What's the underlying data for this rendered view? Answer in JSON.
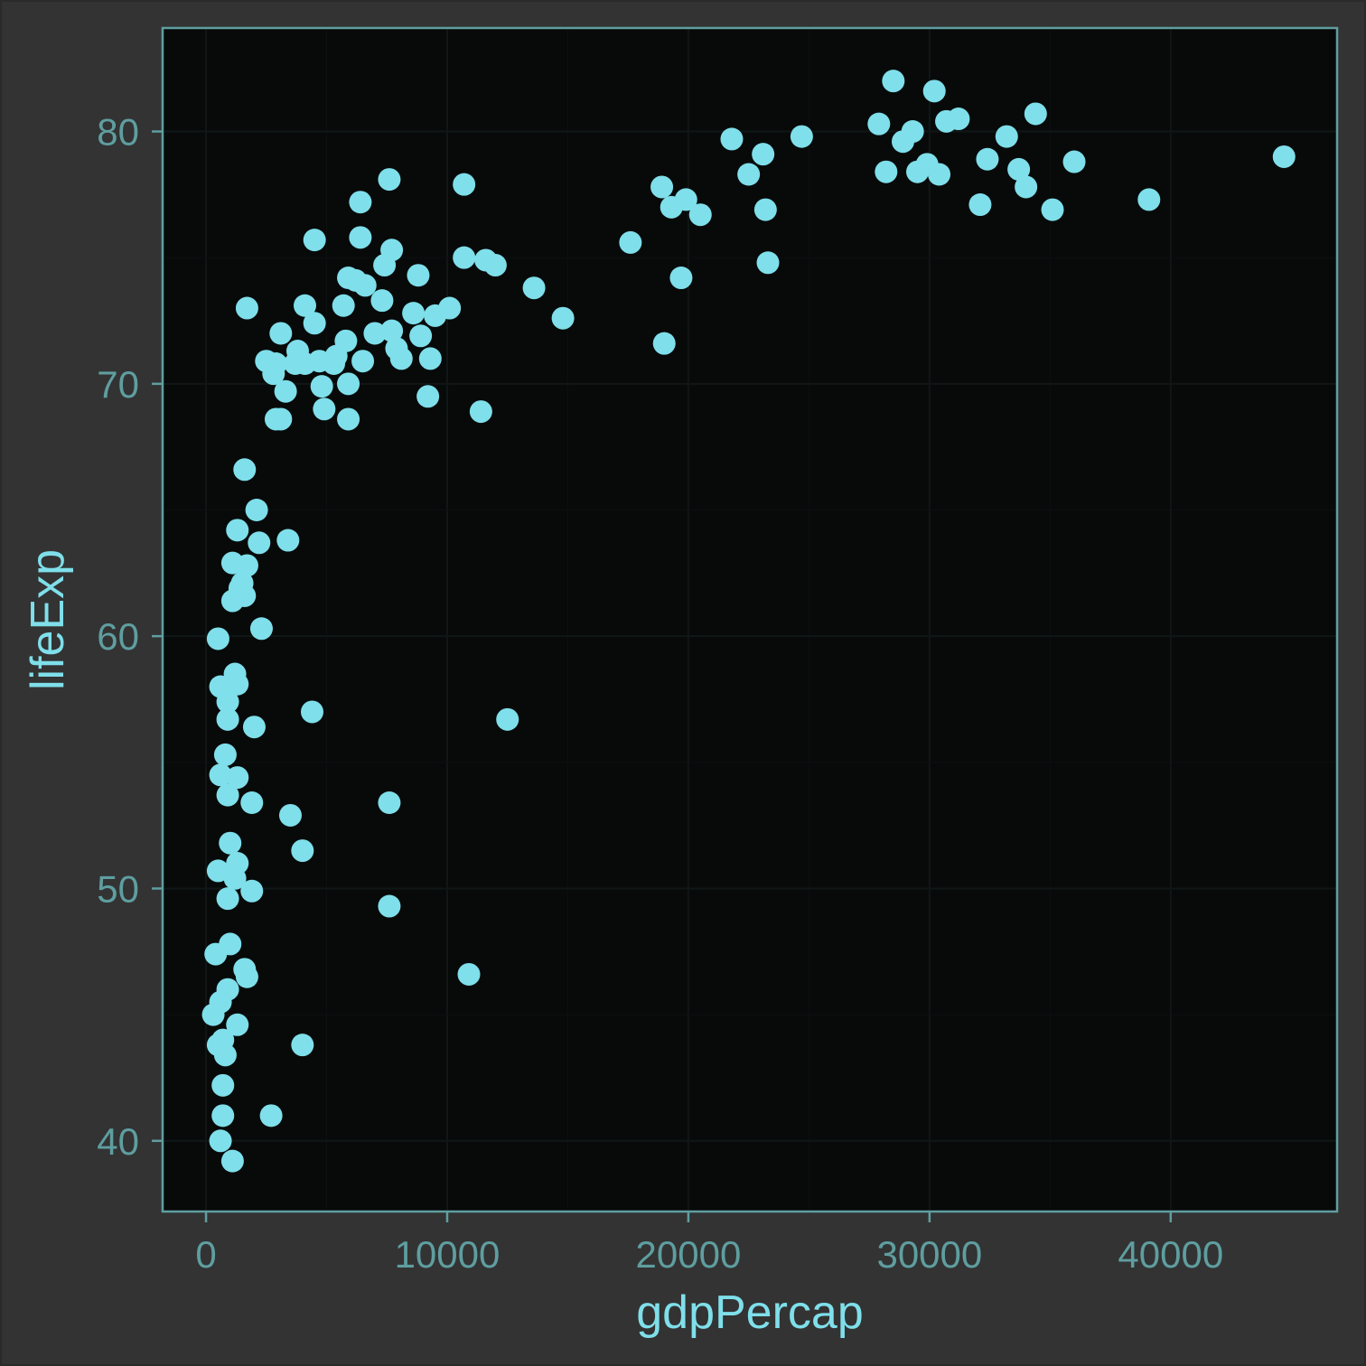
{
  "colors": {
    "background": "#333333",
    "panel": "#080a0a",
    "panel_border": "#5f9ea0",
    "point": "#7fdfea",
    "tick_text": "#5f9ea0",
    "axis_title": "#7fdfea"
  },
  "chart_data": {
    "type": "scatter",
    "title": "",
    "xlabel": "gdpPercap",
    "ylabel": "lifeExp",
    "xlim": [
      -1800,
      46900
    ],
    "ylim": [
      37.2,
      84.1
    ],
    "grid": true,
    "x_ticks": [
      0,
      10000,
      20000,
      30000,
      40000
    ],
    "x_tick_labels": [
      "0",
      "10000",
      "20000",
      "30000",
      "40000"
    ],
    "y_ticks": [
      40,
      50,
      60,
      70,
      80
    ],
    "y_tick_labels": [
      "40",
      "50",
      "60",
      "70",
      "80"
    ],
    "series": [
      {
        "points": [
          [
            44700,
            79.0
          ],
          [
            39100,
            77.3
          ],
          [
            36000,
            78.8
          ],
          [
            35100,
            76.9
          ],
          [
            34400,
            80.7
          ],
          [
            34000,
            77.8
          ],
          [
            33700,
            78.5
          ],
          [
            33200,
            79.8
          ],
          [
            32400,
            78.9
          ],
          [
            32100,
            77.1
          ],
          [
            31200,
            80.5
          ],
          [
            30700,
            80.4
          ],
          [
            30400,
            78.3
          ],
          [
            30200,
            81.6
          ],
          [
            29900,
            78.7
          ],
          [
            29500,
            78.4
          ],
          [
            29300,
            80.0
          ],
          [
            28900,
            79.6
          ],
          [
            28500,
            82.0
          ],
          [
            28200,
            78.4
          ],
          [
            27900,
            80.3
          ],
          [
            24700,
            79.8
          ],
          [
            23300,
            74.8
          ],
          [
            23200,
            76.9
          ],
          [
            23100,
            79.1
          ],
          [
            22500,
            78.3
          ],
          [
            21800,
            79.7
          ],
          [
            20500,
            76.7
          ],
          [
            19900,
            77.3
          ],
          [
            19700,
            74.2
          ],
          [
            19300,
            77.0
          ],
          [
            19000,
            71.6
          ],
          [
            18900,
            77.8
          ],
          [
            17600,
            75.6
          ],
          [
            14800,
            72.6
          ],
          [
            13600,
            73.8
          ],
          [
            12500,
            56.7
          ],
          [
            12000,
            74.7
          ],
          [
            11600,
            74.9
          ],
          [
            11400,
            68.9
          ],
          [
            10900,
            46.6
          ],
          [
            10700,
            75.0
          ],
          [
            10700,
            77.9
          ],
          [
            10100,
            73.0
          ],
          [
            9500,
            72.7
          ],
          [
            9300,
            71.0
          ],
          [
            9200,
            69.5
          ],
          [
            8900,
            71.9
          ],
          [
            8800,
            74.3
          ],
          [
            8600,
            72.8
          ],
          [
            8100,
            71.0
          ],
          [
            7900,
            71.4
          ],
          [
            7700,
            72.1
          ],
          [
            7700,
            75.3
          ],
          [
            7600,
            78.1
          ],
          [
            7600,
            53.4
          ],
          [
            7600,
            49.3
          ],
          [
            7400,
            74.7
          ],
          [
            7300,
            73.3
          ],
          [
            7000,
            72.0
          ],
          [
            6600,
            73.9
          ],
          [
            6500,
            70.9
          ],
          [
            6400,
            75.8
          ],
          [
            6400,
            77.2
          ],
          [
            6200,
            74.1
          ],
          [
            5900,
            74.2
          ],
          [
            5900,
            70.0
          ],
          [
            5900,
            68.6
          ],
          [
            5800,
            71.7
          ],
          [
            5700,
            73.1
          ],
          [
            5400,
            71.1
          ],
          [
            5300,
            70.8
          ],
          [
            4900,
            69.0
          ],
          [
            4800,
            69.9
          ],
          [
            4700,
            70.9
          ],
          [
            4500,
            72.4
          ],
          [
            4500,
            75.7
          ],
          [
            4400,
            57.0
          ],
          [
            4100,
            73.1
          ],
          [
            4100,
            70.8
          ],
          [
            4000,
            43.8
          ],
          [
            4000,
            51.5
          ],
          [
            3800,
            71.3
          ],
          [
            3700,
            70.8
          ],
          [
            3500,
            52.9
          ],
          [
            3400,
            63.8
          ],
          [
            3300,
            69.7
          ],
          [
            3100,
            72.0
          ],
          [
            3100,
            68.6
          ],
          [
            2900,
            68.6
          ],
          [
            2900,
            70.8
          ],
          [
            2800,
            70.4
          ],
          [
            2700,
            41.0
          ],
          [
            2500,
            70.9
          ],
          [
            2300,
            60.3
          ],
          [
            2200,
            63.7
          ],
          [
            2100,
            65.0
          ],
          [
            2000,
            56.4
          ],
          [
            1900,
            49.9
          ],
          [
            1900,
            53.4
          ],
          [
            1700,
            73.0
          ],
          [
            1700,
            62.8
          ],
          [
            1700,
            46.5
          ],
          [
            1600,
            66.6
          ],
          [
            1600,
            46.8
          ],
          [
            1600,
            61.6
          ],
          [
            1500,
            62.1
          ],
          [
            1400,
            61.9
          ],
          [
            1300,
            64.2
          ],
          [
            1300,
            54.4
          ],
          [
            1300,
            51.0
          ],
          [
            1300,
            58.1
          ],
          [
            1300,
            44.6
          ],
          [
            1200,
            58.5
          ],
          [
            1200,
            50.4
          ],
          [
            1100,
            39.2
          ],
          [
            1100,
            61.4
          ],
          [
            1100,
            62.9
          ],
          [
            1000,
            47.8
          ],
          [
            1000,
            51.8
          ],
          [
            900,
            49.6
          ],
          [
            900,
            53.7
          ],
          [
            900,
            56.7
          ],
          [
            900,
            57.4
          ],
          [
            900,
            57.9
          ],
          [
            900,
            46.0
          ],
          [
            800,
            55.3
          ],
          [
            800,
            43.4
          ],
          [
            700,
            42.2
          ],
          [
            700,
            41.0
          ],
          [
            700,
            44.0
          ],
          [
            600,
            40.0
          ],
          [
            600,
            45.5
          ],
          [
            600,
            58.0
          ],
          [
            600,
            54.5
          ],
          [
            500,
            59.9
          ],
          [
            500,
            43.8
          ],
          [
            500,
            50.7
          ],
          [
            400,
            47.4
          ],
          [
            300,
            45.0
          ]
        ]
      }
    ]
  }
}
